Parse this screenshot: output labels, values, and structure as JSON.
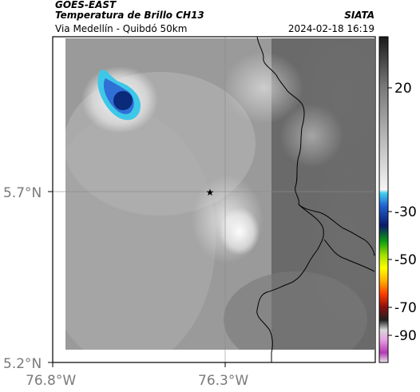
{
  "header": {
    "source": "GOES-EAST",
    "product": "Temperatura de Brillo CH13",
    "organization": "SIATA",
    "region": "Via Medellín - Quibdó 50km",
    "timestamp": "2024-02-18 16:19"
  },
  "axes": {
    "x_ticks": [
      "76.8°W",
      "76.3°W"
    ],
    "y_ticks": [
      "5.7°N",
      "5.2°N"
    ]
  },
  "colorbar": {
    "labels": [
      "20",
      "-30",
      "-50",
      "-70",
      "-90"
    ]
  },
  "marker": {
    "symbol": "★"
  },
  "colors": {
    "cold_core": "#0a2a7a",
    "cold_mid": "#2f6fd6",
    "cold_edge": "#3ec8e8",
    "frame": "#000000",
    "grid": "#8a8a8a"
  }
}
